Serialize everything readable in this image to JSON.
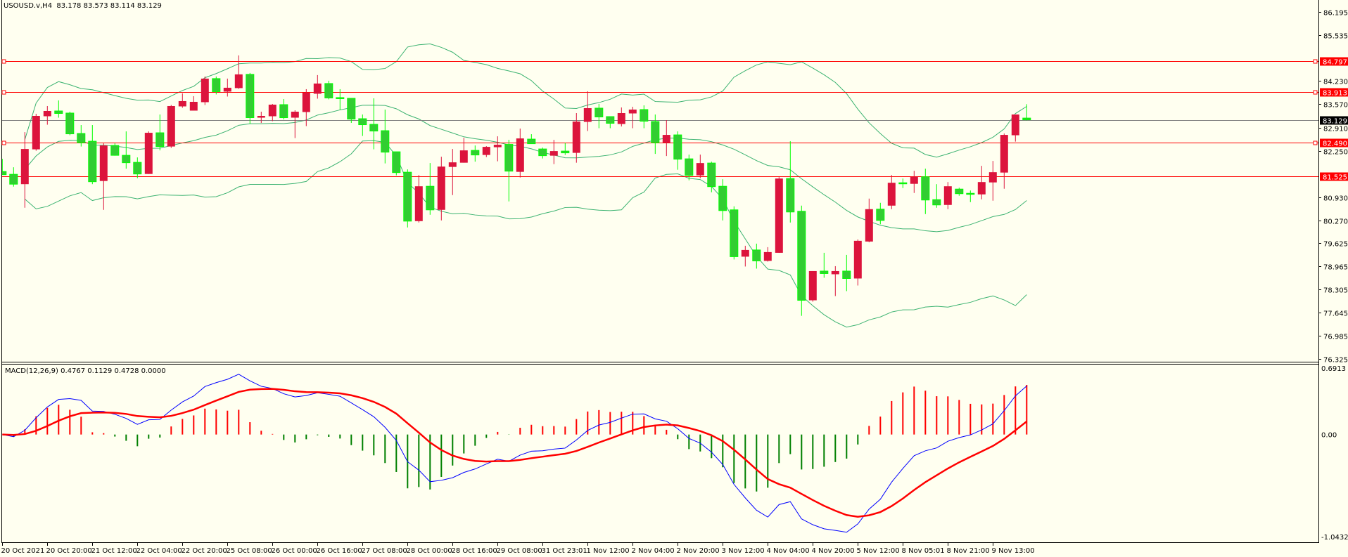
{
  "window": {
    "symbol": "USOUSD.v,H4",
    "ohlc_readout": "83.178 83.573 83.114 83.129"
  },
  "price_axis": {
    "labels": [
      "86.195",
      "85.535",
      "84.230",
      "83.570",
      "82.910",
      "82.250",
      "80.930",
      "80.270",
      "79.625",
      "78.965",
      "78.305",
      "77.645",
      "76.985",
      "76.325"
    ]
  },
  "levels": [
    {
      "price": "84.797",
      "handles": true
    },
    {
      "price": "83.913",
      "handles": true
    },
    {
      "price": "82.490",
      "handles": true
    },
    {
      "price": "81.525",
      "handles": false
    }
  ],
  "current_price": "83.129",
  "time_axis": {
    "labels": [
      "20 Oct 2021",
      "20 Oct 20:00",
      "21 Oct 12:00",
      "22 Oct 04:00",
      "22 Oct 20:00",
      "25 Oct 08:00",
      "26 Oct 00:00",
      "26 Oct 16:00",
      "27 Oct 08:00",
      "28 Oct 00:00",
      "28 Oct 16:00",
      "29 Oct 08:00",
      "31 Oct 23:01",
      "1 Nov 12:00",
      "2 Nov 04:00",
      "2 Nov 20:00",
      "3 Nov 12:00",
      "4 Nov 04:00",
      "4 Nov 20:00",
      "5 Nov 12:00",
      "8 Nov 05:01",
      "8 Nov 21:00",
      "9 Nov 13:00"
    ],
    "bars_per_label": 4
  },
  "macd": {
    "label": "MACD(12,26,9) 0.4767 0.1129 0.4728 0.0000",
    "max_label": "0.6913",
    "zero_label": "0.00",
    "min_label": "-1.0432",
    "range": [
      -1.0432,
      0.6913
    ],
    "fast": 12,
    "slow": 26,
    "signal": 9
  },
  "colors": {
    "background": "#fffff0",
    "bull": "#dc143c",
    "bear": "#32cd32",
    "bear_wick": "#00ff00",
    "bands": "#3cb371",
    "level": "#ff0000",
    "current": "#808080",
    "macd_main": "#0000ff",
    "macd_signal": "#ff0000",
    "hist_pos": "#ff0000",
    "hist_neg": "#008000"
  },
  "chart_data": {
    "type": "candlestick",
    "title": "USOUSD.v,H4",
    "ylim": [
      76.23,
      86.49
    ],
    "bollinger": {
      "period": 20,
      "deviation": 2
    },
    "ohlc": [
      [
        81.66,
        82.02,
        81.57,
        81.57
      ],
      [
        81.58,
        81.78,
        81.23,
        81.3
      ],
      [
        81.3,
        82.78,
        80.63,
        82.3
      ],
      [
        82.29,
        83.3,
        82.25,
        83.24
      ],
      [
        83.23,
        83.52,
        82.99,
        83.38
      ],
      [
        83.38,
        83.68,
        83.19,
        83.31
      ],
      [
        83.32,
        83.36,
        82.69,
        82.73
      ],
      [
        82.74,
        82.98,
        82.37,
        82.48
      ],
      [
        82.52,
        82.98,
        81.3,
        81.37
      ],
      [
        81.39,
        82.46,
        80.57,
        82.4
      ],
      [
        82.4,
        82.46,
        82.11,
        82.12
      ],
      [
        82.12,
        82.8,
        81.74,
        81.91
      ],
      [
        81.92,
        82.06,
        81.47,
        81.59
      ],
      [
        81.59,
        82.8,
        81.59,
        82.76
      ],
      [
        82.76,
        83.28,
        82.26,
        82.37
      ],
      [
        82.37,
        83.55,
        82.33,
        83.52
      ],
      [
        83.51,
        83.88,
        83.47,
        83.66
      ],
      [
        83.39,
        83.8,
        83.39,
        83.64
      ],
      [
        83.63,
        84.36,
        83.55,
        84.3
      ],
      [
        84.3,
        84.36,
        83.85,
        83.93
      ],
      [
        83.93,
        84.3,
        83.79,
        84.04
      ],
      [
        84.03,
        84.96,
        84.01,
        84.42
      ],
      [
        84.42,
        84.46,
        83.02,
        83.19
      ],
      [
        83.19,
        83.36,
        83.04,
        83.24
      ],
      [
        83.23,
        83.58,
        83.09,
        83.56
      ],
      [
        83.56,
        83.72,
        83.14,
        83.19
      ],
      [
        83.19,
        83.4,
        82.61,
        83.36
      ],
      [
        83.35,
        84.0,
        82.95,
        83.9
      ],
      [
        83.87,
        84.4,
        83.73,
        84.16
      ],
      [
        84.16,
        84.24,
        83.71,
        83.75
      ],
      [
        83.76,
        84.0,
        83.41,
        83.73
      ],
      [
        83.74,
        83.74,
        83.04,
        83.15
      ],
      [
        83.16,
        83.28,
        82.67,
        82.99
      ],
      [
        83.0,
        83.74,
        82.29,
        82.81
      ],
      [
        82.82,
        83.42,
        81.89,
        82.21
      ],
      [
        82.22,
        82.22,
        81.55,
        81.63
      ],
      [
        81.64,
        81.72,
        80.07,
        80.25
      ],
      [
        80.25,
        81.56,
        80.21,
        81.24
      ],
      [
        81.24,
        81.9,
        80.43,
        80.57
      ],
      [
        80.57,
        82.08,
        80.27,
        81.8
      ],
      [
        81.79,
        82.3,
        80.99,
        81.92
      ],
      [
        81.91,
        82.62,
        81.91,
        82.26
      ],
      [
        82.26,
        82.4,
        81.94,
        82.13
      ],
      [
        82.13,
        82.38,
        82.07,
        82.36
      ],
      [
        82.35,
        82.66,
        81.95,
        82.42
      ],
      [
        82.43,
        82.56,
        80.81,
        81.67
      ],
      [
        81.65,
        82.88,
        81.49,
        82.6
      ],
      [
        82.58,
        82.72,
        82.45,
        82.45
      ],
      [
        82.3,
        82.34,
        82.03,
        82.11
      ],
      [
        82.11,
        82.56,
        81.87,
        82.24
      ],
      [
        82.24,
        82.47,
        82.13,
        82.19
      ],
      [
        82.19,
        83.32,
        81.91,
        83.08
      ],
      [
        83.07,
        83.94,
        82.81,
        83.46
      ],
      [
        83.46,
        83.58,
        82.89,
        83.21
      ],
      [
        83.22,
        83.22,
        82.89,
        83.03
      ],
      [
        83.01,
        83.48,
        82.94,
        83.32
      ],
      [
        83.31,
        83.5,
        82.89,
        83.42
      ],
      [
        83.42,
        83.54,
        82.89,
        83.09
      ],
      [
        83.08,
        83.28,
        82.16,
        82.48
      ],
      [
        82.48,
        83.12,
        82.1,
        82.7
      ],
      [
        82.7,
        82.8,
        81.71,
        82.01
      ],
      [
        82.02,
        82.14,
        81.41,
        81.55
      ],
      [
        81.55,
        82.14,
        81.47,
        81.9
      ],
      [
        81.9,
        81.94,
        81.07,
        81.23
      ],
      [
        81.24,
        81.44,
        80.27,
        80.55
      ],
      [
        80.57,
        80.67,
        79.16,
        79.24
      ],
      [
        79.24,
        79.55,
        78.96,
        79.43
      ],
      [
        79.43,
        79.61,
        78.9,
        79.12
      ],
      [
        79.12,
        79.51,
        79.1,
        79.37
      ],
      [
        79.35,
        81.5,
        79.35,
        81.46
      ],
      [
        81.46,
        82.52,
        80.21,
        80.51
      ],
      [
        80.53,
        80.69,
        77.56,
        78.0
      ],
      [
        78.0,
        78.83,
        77.96,
        78.83
      ],
      [
        78.83,
        79.35,
        78.64,
        78.76
      ],
      [
        78.74,
        78.97,
        78.12,
        78.83
      ],
      [
        78.83,
        79.29,
        78.26,
        78.62
      ],
      [
        78.62,
        79.73,
        78.42,
        79.69
      ],
      [
        79.67,
        80.89,
        79.65,
        80.59
      ],
      [
        80.59,
        80.77,
        80.16,
        80.27
      ],
      [
        80.69,
        81.56,
        80.59,
        81.34
      ],
      [
        81.34,
        81.46,
        81.19,
        81.31
      ],
      [
        81.31,
        81.68,
        81.05,
        81.51
      ],
      [
        81.51,
        81.74,
        80.45,
        80.85
      ],
      [
        80.86,
        81.3,
        80.63,
        80.71
      ],
      [
        80.71,
        81.36,
        80.59,
        81.24
      ],
      [
        81.16,
        81.2,
        80.97,
        81.03
      ],
      [
        81.04,
        81.12,
        80.79,
        81.01
      ],
      [
        81.01,
        81.82,
        80.87,
        81.36
      ],
      [
        81.35,
        81.96,
        80.83,
        81.64
      ],
      [
        81.63,
        82.74,
        81.17,
        82.7
      ],
      [
        82.69,
        83.28,
        82.51,
        83.28
      ],
      [
        83.178,
        83.573,
        83.114,
        83.129
      ]
    ]
  }
}
